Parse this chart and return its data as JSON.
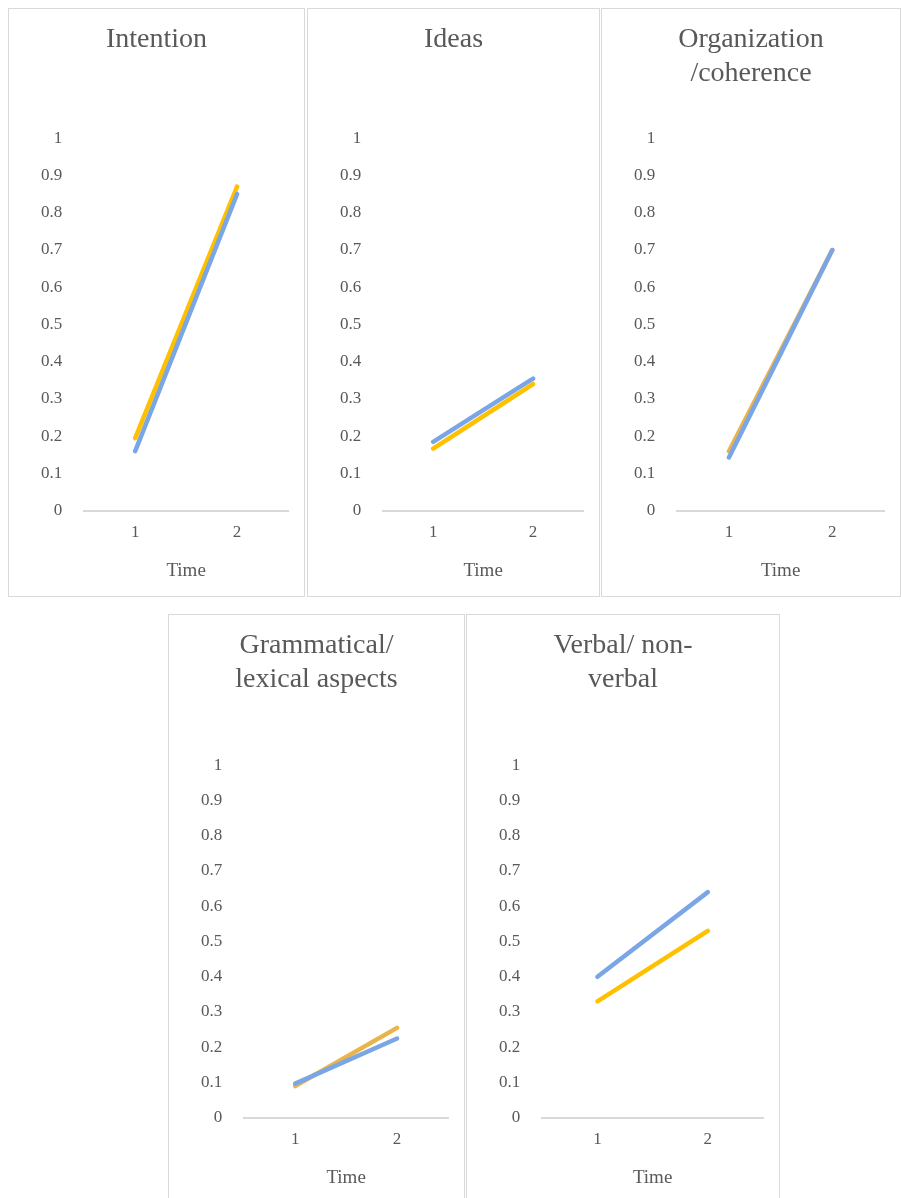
{
  "chart_data": [
    {
      "type": "line",
      "title": "Intention",
      "xlabel": "Time",
      "categories": [
        "1",
        "2"
      ],
      "ylim": [
        0,
        1
      ],
      "yticks": [
        0,
        0.1,
        0.2,
        0.3,
        0.4,
        0.5,
        0.6,
        0.7,
        0.8,
        0.9,
        1
      ],
      "series": [
        {
          "color": "#ffc000",
          "values": [
            0.195,
            0.87
          ]
        },
        {
          "color": "#7aa6e6",
          "values": [
            0.16,
            0.85
          ]
        }
      ]
    },
    {
      "type": "line",
      "title": "Ideas",
      "xlabel": "Time",
      "categories": [
        "1",
        "2"
      ],
      "ylim": [
        0,
        1
      ],
      "yticks": [
        0,
        0.1,
        0.2,
        0.3,
        0.4,
        0.5,
        0.6,
        0.7,
        0.8,
        0.9,
        1
      ],
      "series": [
        {
          "color": "#ffc000",
          "values": [
            0.167,
            0.34
          ]
        },
        {
          "color": "#7aa6e6",
          "values": [
            0.185,
            0.355
          ]
        }
      ]
    },
    {
      "type": "line",
      "title": "Organization /coherence",
      "xlabel": "Time",
      "categories": [
        "1",
        "2"
      ],
      "ylim": [
        0,
        1
      ],
      "yticks": [
        0,
        0.1,
        0.2,
        0.3,
        0.4,
        0.5,
        0.6,
        0.7,
        0.8,
        0.9,
        1
      ],
      "series": [
        {
          "color": "#e9b44c",
          "values": [
            0.16,
            0.7
          ]
        },
        {
          "color": "#7aa6e6",
          "values": [
            0.143,
            0.7
          ]
        }
      ]
    },
    {
      "type": "line",
      "title": "Grammatical/ lexical aspects",
      "xlabel": "Time",
      "categories": [
        "1",
        "2"
      ],
      "ylim": [
        0,
        1
      ],
      "yticks": [
        0,
        0.1,
        0.2,
        0.3,
        0.4,
        0.5,
        0.6,
        0.7,
        0.8,
        0.9,
        1
      ],
      "series": [
        {
          "color": "#e9b44c",
          "values": [
            0.09,
            0.255
          ]
        },
        {
          "color": "#7aa6e6",
          "values": [
            0.097,
            0.225
          ]
        }
      ]
    },
    {
      "type": "line",
      "title": "Verbal/ non-verbal",
      "xlabel": "Time",
      "categories": [
        "1",
        "2"
      ],
      "ylim": [
        0,
        1
      ],
      "yticks": [
        0,
        0.1,
        0.2,
        0.3,
        0.4,
        0.5,
        0.6,
        0.7,
        0.8,
        0.9,
        1
      ],
      "series": [
        {
          "color": "#ffc000",
          "values": [
            0.33,
            0.53
          ]
        },
        {
          "color": "#7aa6e6",
          "values": [
            0.4,
            0.64
          ]
        }
      ]
    }
  ]
}
